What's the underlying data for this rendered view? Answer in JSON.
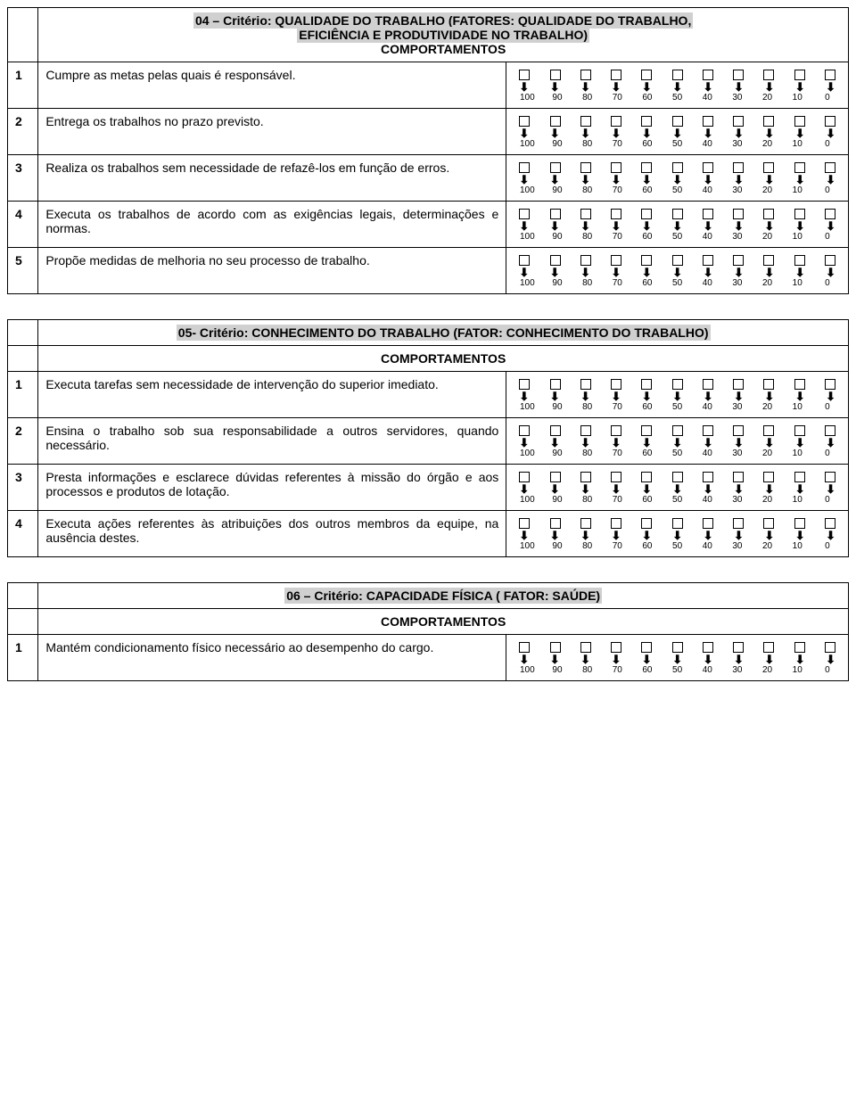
{
  "rating_scale": [
    "100",
    "90",
    "80",
    "70",
    "60",
    "50",
    "40",
    "30",
    "20",
    "10",
    "0"
  ],
  "comportamentos_label": "COMPORTAMENTOS",
  "section04": {
    "title_line1": "04 – Critério: QUALIDADE DO TRABALHO (FATORES: QUALIDADE DO TRABALHO,",
    "title_line2": "EFICIÊNCIA E PRODUTIVIDADE NO TRABALHO)",
    "rows": [
      {
        "n": "1",
        "t": "Cumpre as metas pelas quais é responsável."
      },
      {
        "n": "2",
        "t": "Entrega os trabalhos no prazo previsto."
      },
      {
        "n": "3",
        "t": "Realiza os trabalhos sem necessidade de refazê-los em função de erros."
      },
      {
        "n": "4",
        "t": "Executa os trabalhos de acordo com as exigências legais, determinações e normas."
      },
      {
        "n": "5",
        "t": "Propõe medidas de melhoria no seu processo de trabalho."
      }
    ]
  },
  "section05": {
    "title": "05- Critério: CONHECIMENTO DO TRABALHO (FATOR: CONHECIMENTO DO TRABALHO)",
    "rows": [
      {
        "n": "1",
        "t": "Executa tarefas sem necessidade de intervenção do superior imediato."
      },
      {
        "n": "2",
        "t": "Ensina o trabalho sob sua responsabilidade a outros servidores, quando necessário."
      },
      {
        "n": "3",
        "t": "Presta informações e esclarece dúvidas referentes à missão do órgão e aos processos e produtos de lotação."
      },
      {
        "n": "4",
        "t": "Executa ações referentes às atribuições dos outros membros da equipe, na ausência destes."
      }
    ]
  },
  "section06": {
    "title": "06 – Critério: CAPACIDADE FÍSICA ( FATOR: SAÚDE)",
    "rows": [
      {
        "n": "1",
        "t": "Mantém condicionamento físico necessário ao desempenho do cargo."
      }
    ]
  }
}
